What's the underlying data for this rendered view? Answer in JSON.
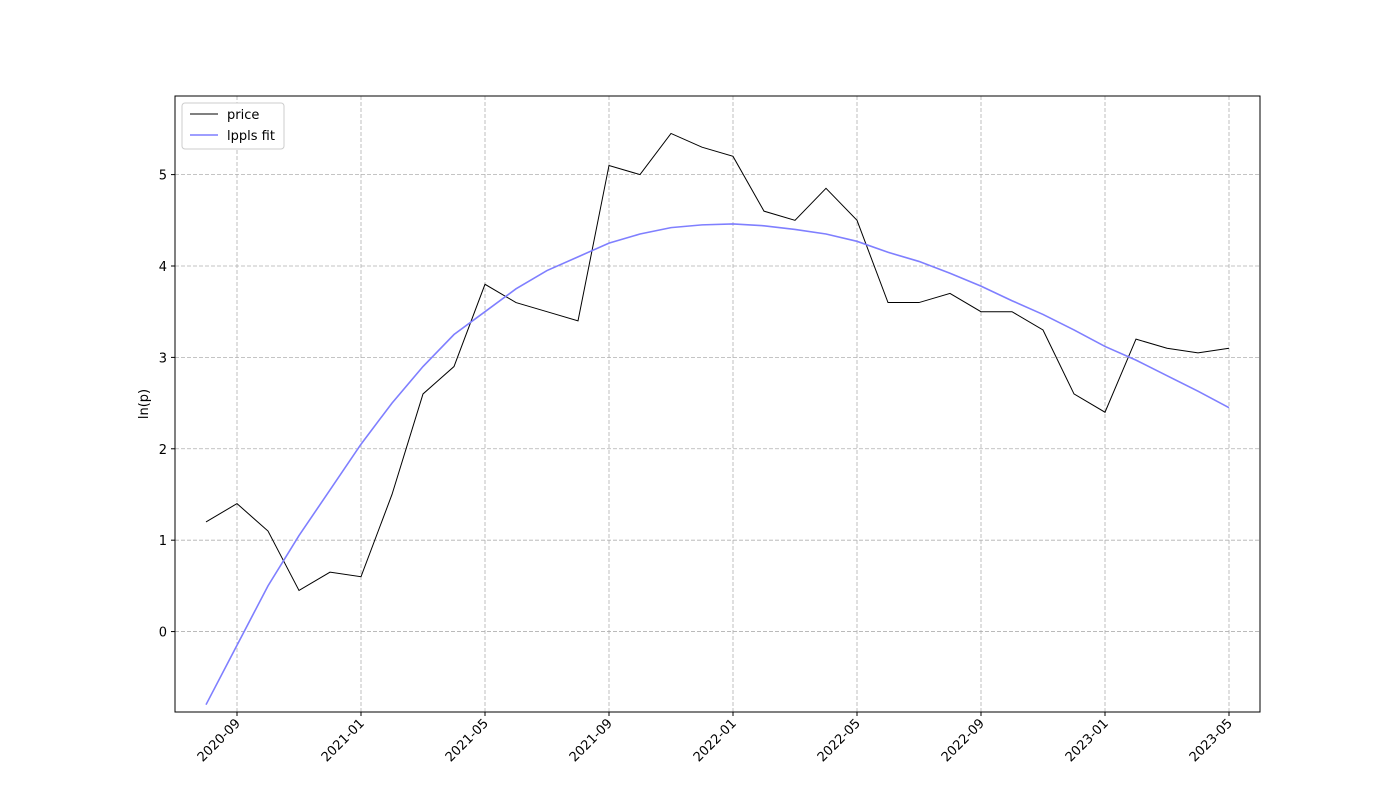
{
  "chart_data": {
    "type": "line",
    "y_label": "ln(p)",
    "x": [
      "2020-08",
      "2020-09",
      "2020-10",
      "2020-11",
      "2020-12",
      "2021-01",
      "2021-02",
      "2021-03",
      "2021-04",
      "2021-05",
      "2021-06",
      "2021-07",
      "2021-08",
      "2021-09",
      "2021-10",
      "2021-11",
      "2021-12",
      "2022-01",
      "2022-02",
      "2022-03",
      "2022-04",
      "2022-05",
      "2022-06",
      "2022-07",
      "2022-08",
      "2022-09",
      "2022-10",
      "2022-11",
      "2022-12",
      "2023-01",
      "2023-02",
      "2023-03",
      "2023-04",
      "2023-05"
    ],
    "series": [
      {
        "name": "price",
        "color": "#000000",
        "width": 1,
        "values": [
          1.2,
          1.4,
          1.1,
          0.45,
          0.65,
          0.6,
          1.5,
          2.6,
          2.9,
          3.8,
          3.6,
          3.5,
          3.4,
          5.1,
          5.0,
          5.45,
          5.3,
          5.2,
          4.6,
          4.5,
          4.85,
          4.5,
          3.6,
          3.6,
          3.7,
          3.5,
          3.5,
          3.3,
          2.6,
          2.4,
          3.2,
          3.1,
          3.05,
          3.1
        ]
      },
      {
        "name": "lppls fit",
        "color": "#7f7fff",
        "width": 1.6,
        "values": [
          -0.8,
          -0.15,
          0.5,
          1.05,
          1.55,
          2.05,
          2.5,
          2.9,
          3.25,
          3.5,
          3.75,
          3.95,
          4.1,
          4.25,
          4.35,
          4.42,
          4.45,
          4.46,
          4.44,
          4.4,
          4.35,
          4.27,
          4.15,
          4.05,
          3.92,
          3.78,
          3.62,
          3.47,
          3.3,
          3.12,
          2.97,
          2.8,
          2.63,
          2.45
        ]
      }
    ],
    "xlim": [
      "2020-07",
      "2023-06"
    ],
    "xticks": [
      "2020-09",
      "2021-01",
      "2021-05",
      "2021-09",
      "2022-01",
      "2022-05",
      "2022-09",
      "2023-01",
      "2023-05"
    ],
    "ylim": [
      -0.88,
      5.86
    ],
    "yticks": [
      0,
      1,
      2,
      3,
      4,
      5
    ],
    "grid": true,
    "legend": "upper-left"
  }
}
